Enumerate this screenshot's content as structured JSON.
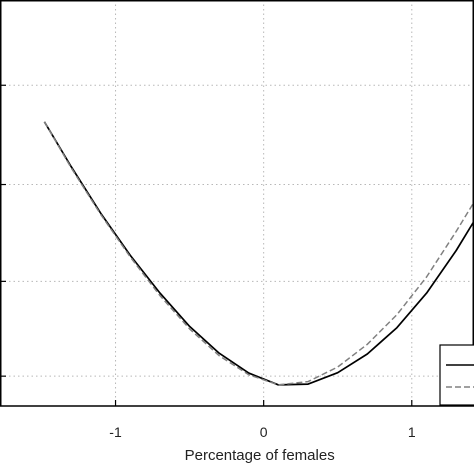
{
  "chart_data": {
    "type": "line",
    "title": "",
    "xlabel": "Percentage of females",
    "ylabel": "",
    "xlim": [
      -1.78,
      1.42
    ],
    "ylim": [
      0.0,
      1.0
    ],
    "x_ticks": [
      -1,
      0,
      1
    ],
    "x_tick_labels": [
      "-1",
      "0",
      "1"
    ],
    "y_gridlines": [
      0.0735,
      0.307,
      0.5455,
      0.79
    ],
    "grid": true,
    "legend_position": "bottom-right",
    "series": [
      {
        "style": "solid",
        "color": "#000000",
        "x": [
          -1.48,
          -1.3,
          -1.1,
          -0.9,
          -0.7,
          -0.5,
          -0.3,
          -0.1,
          0.1,
          0.3,
          0.5,
          0.7,
          0.9,
          1.1,
          1.3,
          1.42
        ],
        "y": [
          0.7,
          0.59,
          0.475,
          0.371,
          0.278,
          0.196,
          0.13,
          0.081,
          0.052,
          0.054,
          0.082,
          0.128,
          0.193,
          0.278,
          0.383,
          0.455
        ]
      },
      {
        "style": "dashed",
        "color": "#808080",
        "x": [
          -1.48,
          -1.3,
          -1.1,
          -0.9,
          -0.7,
          -0.5,
          -0.3,
          -0.1,
          0.1,
          0.3,
          0.5,
          0.7,
          0.9,
          1.1,
          1.3,
          1.42
        ],
        "y": [
          0.7,
          0.587,
          0.472,
          0.367,
          0.272,
          0.19,
          0.124,
          0.077,
          0.052,
          0.06,
          0.096,
          0.152,
          0.225,
          0.318,
          0.43,
          0.502
        ]
      }
    ]
  }
}
